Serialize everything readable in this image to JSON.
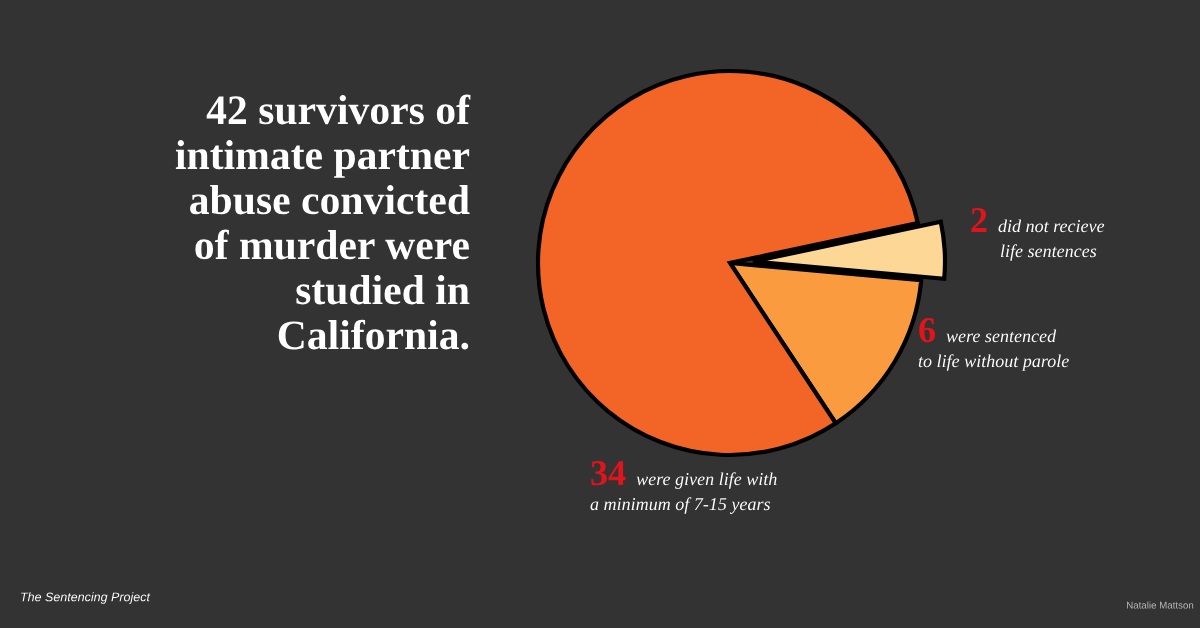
{
  "chart_data": {
    "type": "pie",
    "title": "42 survivors of intimate partner abuse convicted of murder were studied in California.",
    "categories": [
      "did not recieve life sentences",
      "were sentenced to life without parole",
      "were given life with a minimum of 7-15 years"
    ],
    "values": [
      2,
      6,
      34
    ],
    "colors": [
      "#fdd796",
      "#fb9b40",
      "#f26526"
    ],
    "data_labels": true,
    "annotations": [
      "The Sentencing Project",
      "Natalie Mattson"
    ]
  }
}
